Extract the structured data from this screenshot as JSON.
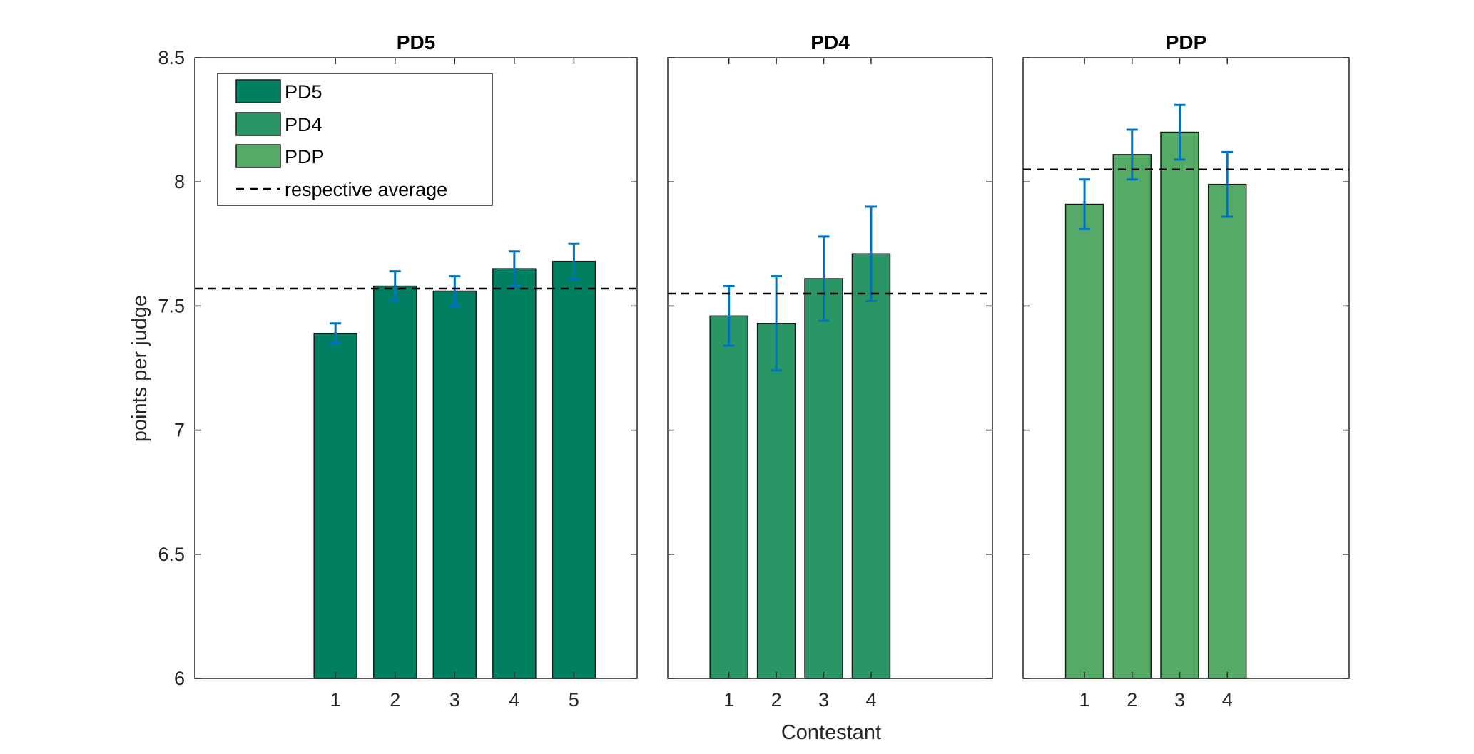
{
  "chart_data": {
    "type": "bar",
    "ylabel": "points per judge",
    "xlabel": "Contestant",
    "ylim": [
      6,
      8.5
    ],
    "yticks": [
      "6",
      "6.5",
      "7",
      "7.5",
      "8",
      "8.5"
    ],
    "error_bar_color": "#0072BD",
    "average_line_style": "dashed",
    "panels": [
      {
        "title": "PD5",
        "color": "#008060",
        "categories": [
          "1",
          "2",
          "3",
          "4",
          "5"
        ],
        "values": [
          7.39,
          7.58,
          7.56,
          7.65,
          7.68
        ],
        "errors": [
          0.04,
          0.06,
          0.06,
          0.07,
          0.07
        ],
        "average": 7.57
      },
      {
        "title": "PD4",
        "color": "#2A9565",
        "categories": [
          "1",
          "2",
          "3",
          "4"
        ],
        "values": [
          7.46,
          7.43,
          7.61,
          7.71
        ],
        "errors": [
          0.12,
          0.19,
          0.17,
          0.19
        ],
        "average": 7.55
      },
      {
        "title": "PDP",
        "color": "#55AA66",
        "categories": [
          "1",
          "2",
          "3",
          "4"
        ],
        "values": [
          7.91,
          8.11,
          8.2,
          7.99
        ],
        "errors": [
          0.1,
          0.1,
          0.11,
          0.13
        ],
        "average": 8.05
      }
    ],
    "legend": {
      "placement": "top-left",
      "entries": [
        "PD5",
        "PD4",
        "PDP",
        "respective average"
      ]
    }
  }
}
